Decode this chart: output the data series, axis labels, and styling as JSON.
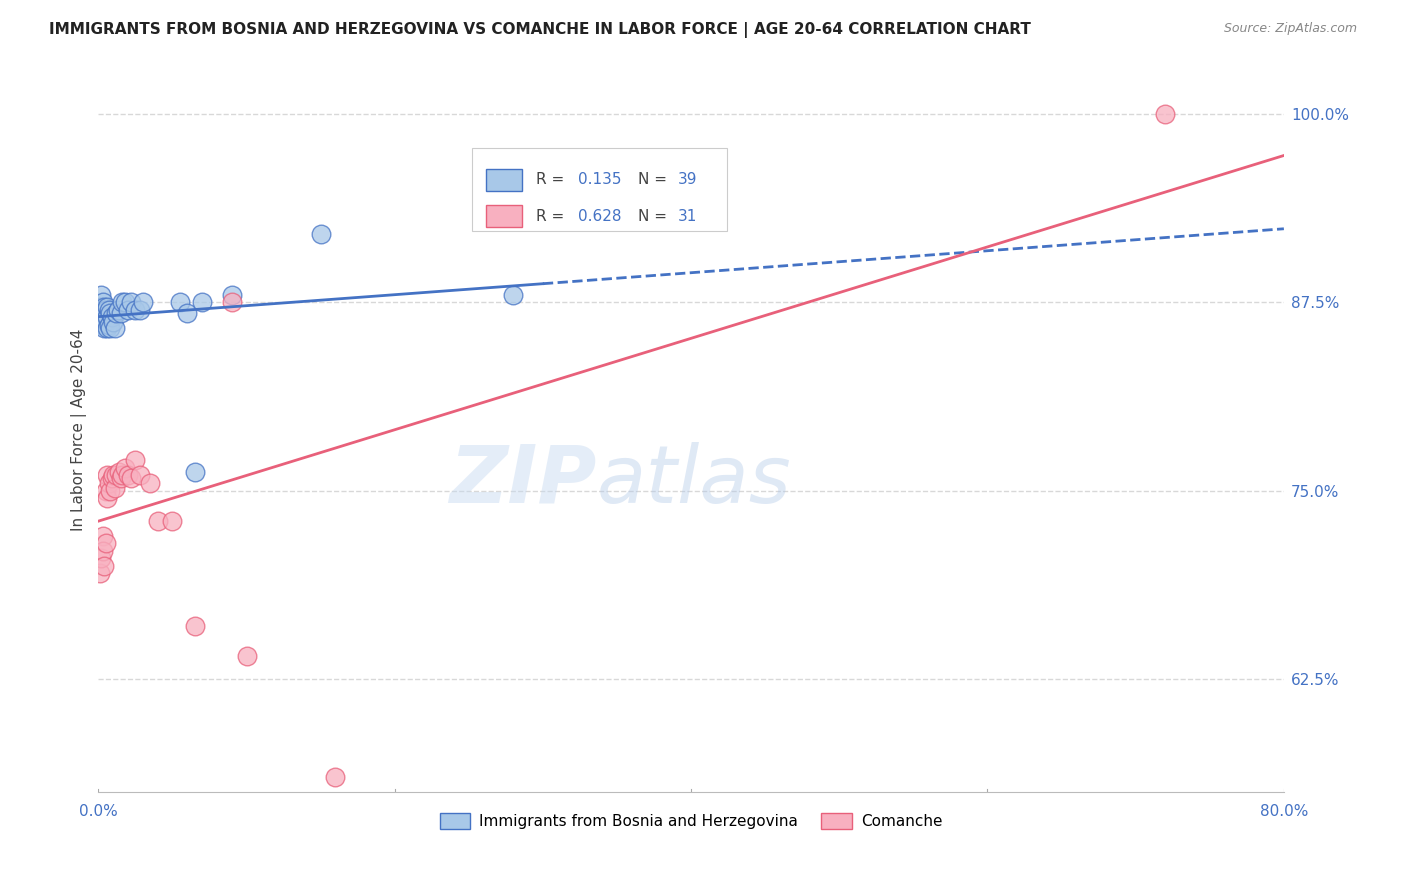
{
  "title": "IMMIGRANTS FROM BOSNIA AND HERZEGOVINA VS COMANCHE IN LABOR FORCE | AGE 20-64 CORRELATION CHART",
  "source": "Source: ZipAtlas.com",
  "ylabel": "In Labor Force | Age 20-64",
  "xlim": [
    0.0,
    0.8
  ],
  "ylim": [
    0.55,
    1.03
  ],
  "yticks": [
    0.625,
    0.75,
    0.875,
    1.0
  ],
  "ytick_labels": [
    "62.5%",
    "75.0%",
    "87.5%",
    "100.0%"
  ],
  "bosnia_R": 0.135,
  "bosnia_N": 39,
  "comanche_R": 0.628,
  "comanche_N": 31,
  "bosnia_color": "#a8c8e8",
  "comanche_color": "#f8b0c0",
  "bosnia_line_color": "#4472c4",
  "comanche_line_color": "#e8607a",
  "bosnia_label": "Immigrants from Bosnia and Herzegovina",
  "comanche_label": "Comanche",
  "background_color": "#ffffff",
  "grid_color": "#d8d8d8",
  "tick_color": "#4472c4",
  "title_fontsize": 11,
  "axis_label_fontsize": 11,
  "tick_fontsize": 11,
  "legend_fontsize": 11,
  "bosnia_x": [
    0.001,
    0.001,
    0.002,
    0.002,
    0.003,
    0.003,
    0.003,
    0.004,
    0.004,
    0.004,
    0.005,
    0.005,
    0.006,
    0.006,
    0.006,
    0.007,
    0.007,
    0.008,
    0.008,
    0.009,
    0.01,
    0.011,
    0.012,
    0.013,
    0.015,
    0.016,
    0.018,
    0.02,
    0.022,
    0.025,
    0.028,
    0.03,
    0.055,
    0.06,
    0.065,
    0.07,
    0.09,
    0.15,
    0.28
  ],
  "bosnia_y": [
    0.87,
    0.862,
    0.88,
    0.872,
    0.875,
    0.87,
    0.86,
    0.872,
    0.865,
    0.858,
    0.87,
    0.862,
    0.872,
    0.865,
    0.858,
    0.87,
    0.86,
    0.868,
    0.858,
    0.865,
    0.862,
    0.858,
    0.868,
    0.87,
    0.868,
    0.875,
    0.875,
    0.87,
    0.875,
    0.87,
    0.87,
    0.875,
    0.875,
    0.868,
    0.762,
    0.875,
    0.88,
    0.92,
    0.88
  ],
  "comanche_x": [
    0.001,
    0.002,
    0.003,
    0.003,
    0.004,
    0.005,
    0.005,
    0.006,
    0.006,
    0.007,
    0.008,
    0.009,
    0.01,
    0.011,
    0.012,
    0.014,
    0.015,
    0.016,
    0.018,
    0.02,
    0.022,
    0.025,
    0.028,
    0.035,
    0.04,
    0.05,
    0.065,
    0.09,
    0.1,
    0.16,
    0.72
  ],
  "comanche_y": [
    0.695,
    0.705,
    0.72,
    0.71,
    0.7,
    0.715,
    0.75,
    0.745,
    0.76,
    0.755,
    0.75,
    0.758,
    0.76,
    0.752,
    0.76,
    0.762,
    0.758,
    0.76,
    0.765,
    0.76,
    0.758,
    0.77,
    0.76,
    0.755,
    0.73,
    0.73,
    0.66,
    0.875,
    0.64,
    0.56,
    1.0
  ]
}
